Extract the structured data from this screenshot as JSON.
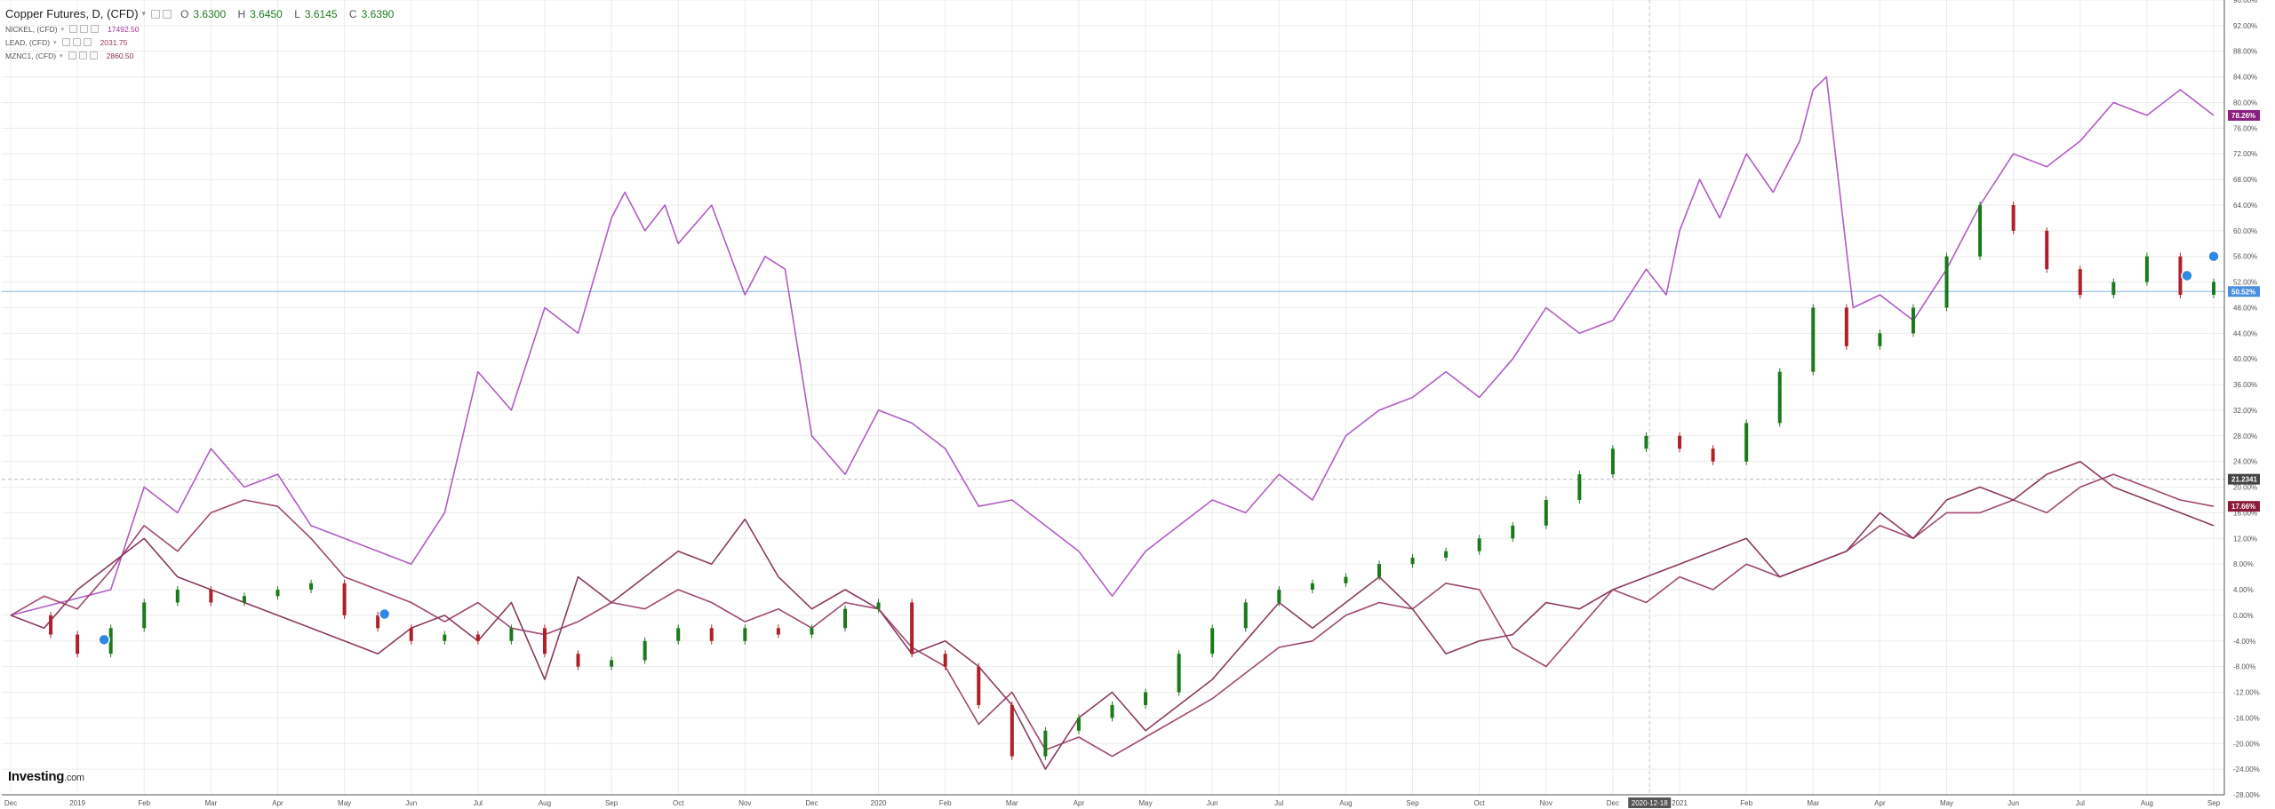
{
  "legend": {
    "main": {
      "title": "Copper Futures, D, (CFD)",
      "open_label": "O",
      "open": "3.6300",
      "high_label": "H",
      "high": "3.6450",
      "low_label": "L",
      "low": "3.6145",
      "close_label": "C",
      "close": "3.6390"
    },
    "overlays": [
      {
        "name": "NICKEL, (CFD)",
        "value": "17492.50",
        "color": "#9b3a8e"
      },
      {
        "name": "LEAD, (CFD)",
        "value": "2031.75",
        "color": "#9b3a5a"
      },
      {
        "name": "MZNC1, (CFD)",
        "value": "2860.50",
        "color": "#8b2f52"
      }
    ]
  },
  "logo": {
    "brand": "Investing",
    "suffix": ".com"
  },
  "chart_data": {
    "type": "line",
    "x_labels": [
      "Dec",
      "2019",
      "Feb",
      "Mar",
      "Apr",
      "May",
      "Jun",
      "Jul",
      "Aug",
      "Sep",
      "Oct",
      "Nov",
      "Dec",
      "2020",
      "Feb",
      "Mar",
      "Apr",
      "May",
      "Jun",
      "Jul",
      "Aug",
      "Sep",
      "Oct",
      "Nov",
      "Dec",
      "2021",
      "Feb",
      "Mar",
      "Apr",
      "May",
      "Jun",
      "Jul",
      "Aug",
      "Sep"
    ],
    "crosshair_date": "2020-12-18",
    "ylim": [
      -28,
      96
    ],
    "y_ticks": [
      -28,
      -24,
      -20,
      -16,
      -12,
      -8,
      -4,
      0,
      4,
      8,
      12,
      16,
      20,
      24,
      28,
      32,
      36,
      40,
      44,
      48,
      52,
      56,
      60,
      64,
      68,
      72,
      76,
      80,
      84,
      88,
      92,
      96
    ],
    "series": [
      {
        "name": "NICKEL, (CFD)",
        "color": "#b05cc4",
        "badge": "78.26%",
        "x": [
          0,
          1.5,
          2,
          2.5,
          3,
          3.5,
          4,
          4.5,
          5,
          5.5,
          6,
          6.5,
          7,
          7.5,
          8,
          8.5,
          9,
          9.2,
          9.5,
          9.8,
          10,
          10.5,
          11,
          11.3,
          11.6,
          12,
          12.5,
          13,
          13.5,
          14,
          14.5,
          15,
          15.5,
          16,
          16.5,
          17,
          17.5,
          18,
          18.5,
          19,
          19.5,
          20,
          20.5,
          21,
          21.5,
          22,
          22.5,
          23,
          23.5,
          24,
          24.5,
          24.8,
          25,
          25.3,
          25.6,
          26,
          26.4,
          26.8,
          27,
          27.2,
          27.6,
          28,
          28.5,
          29,
          29.5,
          30,
          30.5,
          31,
          31.5,
          32,
          32.5,
          33
        ],
        "y": [
          0,
          4,
          20,
          16,
          26,
          20,
          22,
          14,
          12,
          10,
          8,
          16,
          38,
          32,
          48,
          44,
          62,
          66,
          60,
          64,
          58,
          64,
          50,
          56,
          54,
          28,
          22,
          32,
          30,
          26,
          17,
          18,
          14,
          10,
          3,
          10,
          14,
          18,
          16,
          22,
          18,
          28,
          32,
          34,
          38,
          34,
          40,
          48,
          44,
          46,
          54,
          50,
          60,
          68,
          62,
          72,
          66,
          74,
          82,
          84,
          48,
          50,
          46,
          54,
          64,
          72,
          70,
          74,
          80,
          78,
          82,
          78
        ]
      },
      {
        "name": "LEAD, (CFD)",
        "color": "#a04870",
        "badge": "17.66%",
        "x": [
          0,
          0.5,
          1,
          1.5,
          2,
          2.5,
          3,
          3.5,
          4,
          4.5,
          5,
          5.5,
          6,
          6.5,
          7,
          7.5,
          8,
          8.5,
          9,
          9.5,
          10,
          10.5,
          11,
          11.5,
          12,
          12.5,
          13,
          13.5,
          14,
          14.5,
          15,
          15.5,
          16,
          16.5,
          17,
          17.5,
          18,
          18.5,
          19,
          19.5,
          20,
          20.5,
          21,
          21.5,
          22,
          22.5,
          23,
          23.5,
          24,
          24.5,
          25,
          25.5,
          26,
          26.5,
          27,
          27.5,
          28,
          28.5,
          29,
          29.5,
          30,
          30.5,
          31,
          31.5,
          32,
          32.5,
          33
        ],
        "y": [
          0,
          3,
          1,
          7,
          14,
          10,
          16,
          18,
          17,
          12,
          6,
          4,
          2,
          -1,
          2,
          -2,
          -3,
          -1,
          2,
          1,
          4,
          2,
          -1,
          1,
          -2,
          2,
          1,
          -5,
          -8,
          -17,
          -12,
          -21,
          -19,
          -22,
          -19,
          -16,
          -13,
          -9,
          -5,
          -4,
          0,
          2,
          1,
          5,
          4,
          -5,
          -8,
          -2,
          4,
          2,
          6,
          4,
          8,
          6,
          8,
          10,
          14,
          12,
          16,
          16,
          18,
          16,
          20,
          22,
          20,
          18,
          17
        ]
      },
      {
        "name": "MZNC1, (CFD)",
        "color": "#8b3a5e",
        "badge": null,
        "x": [
          0,
          0.5,
          1,
          1.5,
          2,
          2.5,
          3,
          3.5,
          4,
          4.5,
          5,
          5.5,
          6,
          6.5,
          7,
          7.5,
          8,
          8.5,
          9,
          9.5,
          10,
          10.5,
          11,
          11.5,
          12,
          12.5,
          13,
          13.5,
          14,
          14.5,
          15,
          15.5,
          16,
          16.5,
          17,
          17.5,
          18,
          18.5,
          19,
          19.5,
          20,
          20.5,
          21,
          21.5,
          22,
          22.5,
          23,
          23.5,
          24,
          24.5,
          25,
          25.5,
          26,
          26.5,
          27,
          27.5,
          28,
          28.5,
          29,
          29.5,
          30,
          30.5,
          31,
          31.5,
          32,
          32.5,
          33
        ],
        "y": [
          0,
          -2,
          4,
          8,
          12,
          6,
          4,
          2,
          0,
          -2,
          -4,
          -6,
          -2,
          0,
          -4,
          2,
          -10,
          6,
          2,
          6,
          10,
          8,
          15,
          6,
          1,
          4,
          1,
          -6,
          -4,
          -8,
          -14,
          -24,
          -16,
          -12,
          -18,
          -14,
          -10,
          -4,
          2,
          -2,
          2,
          6,
          1,
          -6,
          -4,
          -3,
          2,
          1,
          4,
          6,
          8,
          10,
          12,
          6,
          8,
          10,
          16,
          12,
          18,
          20,
          18,
          22,
          24,
          20,
          18,
          16,
          14
        ]
      }
    ],
    "candles": {
      "name": "Copper Futures, D, (CFD)",
      "badge": "50.52%",
      "x": [
        0.2,
        0.6,
        1.0,
        1.5,
        2.0,
        2.5,
        3.0,
        3.5,
        4.0,
        4.5,
        5.0,
        5.5,
        6.0,
        6.5,
        7.0,
        7.5,
        8.0,
        8.5,
        9.0,
        9.5,
        10.0,
        10.5,
        11.0,
        11.5,
        12.0,
        12.5,
        13.0,
        13.5,
        14.0,
        14.5,
        15.0,
        15.5,
        16.0,
        16.5,
        17.0,
        17.5,
        18.0,
        18.5,
        19.0,
        19.5,
        20.0,
        20.5,
        21.0,
        21.5,
        22.0,
        22.5,
        23.0,
        23.5,
        24.0,
        24.5,
        25.0,
        25.5,
        26.0,
        26.5,
        27.0,
        27.5,
        28.0,
        28.5,
        29.0,
        29.5,
        30.0,
        30.5,
        31.0,
        31.5,
        32.0,
        32.5,
        33.0
      ],
      "y": [
        0,
        -3,
        -6,
        -2,
        2,
        4,
        2,
        3,
        4,
        5,
        0,
        -2,
        -4,
        -3,
        -4,
        -2,
        -6,
        -8,
        -7,
        -4,
        -2,
        -4,
        -2,
        -3,
        -2,
        1,
        2,
        -6,
        -8,
        -14,
        -22,
        -18,
        -16,
        -14,
        -12,
        -6,
        -2,
        2,
        4,
        5,
        6,
        8,
        9,
        10,
        12,
        14,
        18,
        22,
        26,
        28,
        26,
        24,
        30,
        38,
        48,
        42,
        44,
        48,
        56,
        64,
        60,
        54,
        50,
        52,
        56,
        50,
        52
      ]
    },
    "hlines": [
      {
        "value": 50.52,
        "color": "#a8c8e8"
      },
      {
        "value": 21.2341,
        "color": "#cccccc",
        "dashed": true,
        "badge": "21.2341"
      }
    ],
    "markers": [
      {
        "x": 1.4,
        "y": -3.8
      },
      {
        "x": 5.6,
        "y": 0.2
      },
      {
        "x": 32.6,
        "y": 53
      },
      {
        "x": 33.0,
        "y": 56
      }
    ]
  }
}
